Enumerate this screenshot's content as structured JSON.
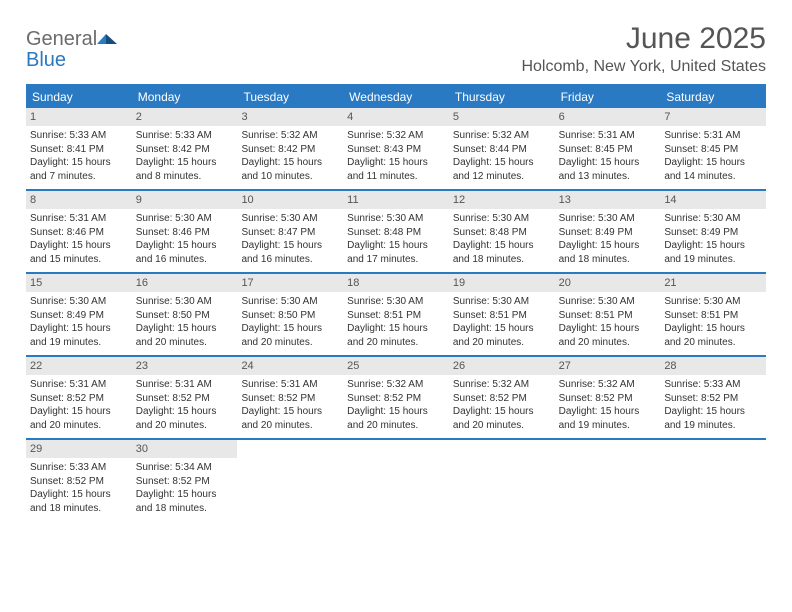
{
  "logo": {
    "line1": "General",
    "line2": "Blue"
  },
  "title": "June 2025",
  "location": "Holcomb, New York, United States",
  "colors": {
    "accent": "#2979c3",
    "dayHeaderBg": "#e8e8e8",
    "textMuted": "#555555",
    "text": "#333333",
    "background": "#ffffff"
  },
  "daysOfWeek": [
    "Sunday",
    "Monday",
    "Tuesday",
    "Wednesday",
    "Thursday",
    "Friday",
    "Saturday"
  ],
  "weeks": [
    [
      {
        "n": "1",
        "sunrise": "5:33 AM",
        "sunset": "8:41 PM",
        "dl": "15 hours and 7 minutes."
      },
      {
        "n": "2",
        "sunrise": "5:33 AM",
        "sunset": "8:42 PM",
        "dl": "15 hours and 8 minutes."
      },
      {
        "n": "3",
        "sunrise": "5:32 AM",
        "sunset": "8:42 PM",
        "dl": "15 hours and 10 minutes."
      },
      {
        "n": "4",
        "sunrise": "5:32 AM",
        "sunset": "8:43 PM",
        "dl": "15 hours and 11 minutes."
      },
      {
        "n": "5",
        "sunrise": "5:32 AM",
        "sunset": "8:44 PM",
        "dl": "15 hours and 12 minutes."
      },
      {
        "n": "6",
        "sunrise": "5:31 AM",
        "sunset": "8:45 PM",
        "dl": "15 hours and 13 minutes."
      },
      {
        "n": "7",
        "sunrise": "5:31 AM",
        "sunset": "8:45 PM",
        "dl": "15 hours and 14 minutes."
      }
    ],
    [
      {
        "n": "8",
        "sunrise": "5:31 AM",
        "sunset": "8:46 PM",
        "dl": "15 hours and 15 minutes."
      },
      {
        "n": "9",
        "sunrise": "5:30 AM",
        "sunset": "8:46 PM",
        "dl": "15 hours and 16 minutes."
      },
      {
        "n": "10",
        "sunrise": "5:30 AM",
        "sunset": "8:47 PM",
        "dl": "15 hours and 16 minutes."
      },
      {
        "n": "11",
        "sunrise": "5:30 AM",
        "sunset": "8:48 PM",
        "dl": "15 hours and 17 minutes."
      },
      {
        "n": "12",
        "sunrise": "5:30 AM",
        "sunset": "8:48 PM",
        "dl": "15 hours and 18 minutes."
      },
      {
        "n": "13",
        "sunrise": "5:30 AM",
        "sunset": "8:49 PM",
        "dl": "15 hours and 18 minutes."
      },
      {
        "n": "14",
        "sunrise": "5:30 AM",
        "sunset": "8:49 PM",
        "dl": "15 hours and 19 minutes."
      }
    ],
    [
      {
        "n": "15",
        "sunrise": "5:30 AM",
        "sunset": "8:49 PM",
        "dl": "15 hours and 19 minutes."
      },
      {
        "n": "16",
        "sunrise": "5:30 AM",
        "sunset": "8:50 PM",
        "dl": "15 hours and 20 minutes."
      },
      {
        "n": "17",
        "sunrise": "5:30 AM",
        "sunset": "8:50 PM",
        "dl": "15 hours and 20 minutes."
      },
      {
        "n": "18",
        "sunrise": "5:30 AM",
        "sunset": "8:51 PM",
        "dl": "15 hours and 20 minutes."
      },
      {
        "n": "19",
        "sunrise": "5:30 AM",
        "sunset": "8:51 PM",
        "dl": "15 hours and 20 minutes."
      },
      {
        "n": "20",
        "sunrise": "5:30 AM",
        "sunset": "8:51 PM",
        "dl": "15 hours and 20 minutes."
      },
      {
        "n": "21",
        "sunrise": "5:30 AM",
        "sunset": "8:51 PM",
        "dl": "15 hours and 20 minutes."
      }
    ],
    [
      {
        "n": "22",
        "sunrise": "5:31 AM",
        "sunset": "8:52 PM",
        "dl": "15 hours and 20 minutes."
      },
      {
        "n": "23",
        "sunrise": "5:31 AM",
        "sunset": "8:52 PM",
        "dl": "15 hours and 20 minutes."
      },
      {
        "n": "24",
        "sunrise": "5:31 AM",
        "sunset": "8:52 PM",
        "dl": "15 hours and 20 minutes."
      },
      {
        "n": "25",
        "sunrise": "5:32 AM",
        "sunset": "8:52 PM",
        "dl": "15 hours and 20 minutes."
      },
      {
        "n": "26",
        "sunrise": "5:32 AM",
        "sunset": "8:52 PM",
        "dl": "15 hours and 20 minutes."
      },
      {
        "n": "27",
        "sunrise": "5:32 AM",
        "sunset": "8:52 PM",
        "dl": "15 hours and 19 minutes."
      },
      {
        "n": "28",
        "sunrise": "5:33 AM",
        "sunset": "8:52 PM",
        "dl": "15 hours and 19 minutes."
      }
    ],
    [
      {
        "n": "29",
        "sunrise": "5:33 AM",
        "sunset": "8:52 PM",
        "dl": "15 hours and 18 minutes."
      },
      {
        "n": "30",
        "sunrise": "5:34 AM",
        "sunset": "8:52 PM",
        "dl": "15 hours and 18 minutes."
      },
      null,
      null,
      null,
      null,
      null
    ]
  ],
  "labels": {
    "sunrise": "Sunrise:",
    "sunset": "Sunset:",
    "daylight": "Daylight:"
  }
}
